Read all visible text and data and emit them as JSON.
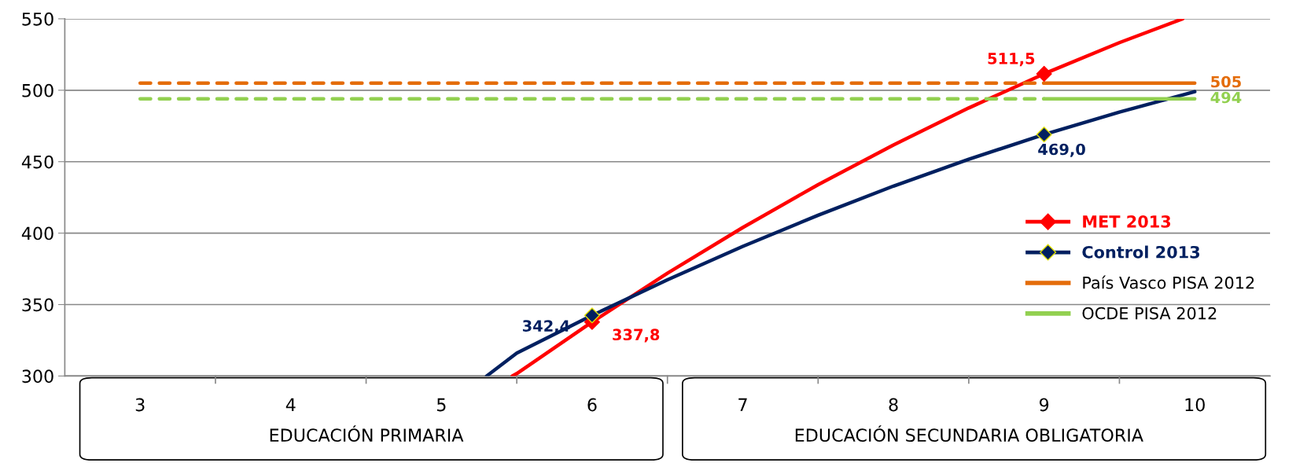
{
  "chart_data": {
    "type": "line",
    "xlim": [
      2.5,
      10.5
    ],
    "xticks": [
      3,
      4,
      5,
      6,
      7,
      8,
      9,
      10
    ],
    "ylim": [
      300,
      550
    ],
    "yticks": [
      300,
      350,
      400,
      450,
      500,
      550
    ],
    "grid": "y",
    "legend": "right",
    "annotations": [
      "EDUCACIÓN PRIMARIA",
      "EDUCACIÓN SECUNDARIA OBLIGATORIA"
    ],
    "series": [
      {
        "color": "#ff0000",
        "x": [
          5.47,
          5.5,
          6,
          6.5,
          7,
          7.5,
          8,
          8.5,
          9,
          9.5,
          9.92
        ],
        "values": [
          300,
          301.7,
          337.8,
          371.9,
          403.9,
          433.9,
          461.7,
          487.6,
          511.5,
          533.3,
          550
        ]
      },
      {
        "color": "#002060",
        "x": [
          5.3,
          5.5,
          6,
          6.5,
          7,
          7.5,
          8,
          8.5,
          9,
          9.5,
          10
        ],
        "values": [
          300,
          316.0,
          342.4,
          367.3,
          390.7,
          412.5,
          432.9,
          451.7,
          469.0,
          484.7,
          499
        ]
      },
      {
        "color": "#e46c0a",
        "line_style": "dashed",
        "x": [
          3,
          9
        ],
        "values": [
          505,
          505
        ]
      },
      {
        "color": "#92d050",
        "line_style": "dashed",
        "x": [
          3,
          9
        ],
        "values": [
          494,
          494
        ]
      },
      {
        "type": "scatter",
        "name": "MET 2013",
        "color": "#ff0000",
        "marker": "diamond",
        "x": [
          6,
          9
        ],
        "values": [
          337.8,
          511.5
        ],
        "value_labels": [
          "337,8",
          "511,5"
        ]
      },
      {
        "type": "scatter",
        "name": "Control 2013",
        "color": "#002060",
        "marker": "diamond",
        "x": [
          6,
          9
        ],
        "values": [
          342.4,
          469.0
        ],
        "value_labels": [
          "342,4",
          "469,0"
        ]
      },
      {
        "name": "País Vasco PISA 2012",
        "color": "#e46c0a",
        "x": [
          9,
          10
        ],
        "values": [
          505,
          505
        ],
        "value_labels": [
          null,
          "505"
        ]
      },
      {
        "name": "OCDE PISA 2012",
        "color": "#92d050",
        "x": [
          9,
          10
        ],
        "values": [
          494,
          494
        ],
        "value_labels": [
          null,
          "494"
        ]
      }
    ]
  }
}
